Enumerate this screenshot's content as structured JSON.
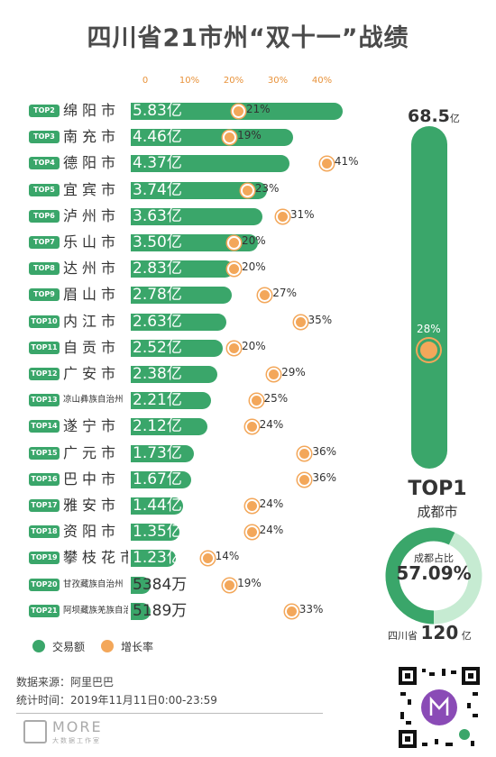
{
  "title": "四川省21市州“双十一”战绩",
  "axis": {
    "ticks": [
      "0",
      "10%",
      "20%",
      "30%",
      "40%"
    ]
  },
  "chart_data": {
    "type": "bar",
    "title": "四川省21市州“双十一”战绩",
    "series": [
      {
        "name": "交易额",
        "unit": "亿",
        "values": [
          5.83,
          4.46,
          4.37,
          3.74,
          3.63,
          3.5,
          2.83,
          2.78,
          2.63,
          2.52,
          2.38,
          2.21,
          2.12,
          1.73,
          1.67,
          1.44,
          1.35,
          1.23,
          0.5384,
          0.5189
        ]
      },
      {
        "name": "增长率",
        "unit": "%",
        "values": [
          21,
          19,
          41,
          23,
          31,
          20,
          20,
          27,
          35,
          20,
          29,
          25,
          24,
          36,
          36,
          24,
          24,
          14,
          19,
          33
        ]
      }
    ],
    "categories": [
      "绵阳市",
      "南充市",
      "德阳市",
      "宜宾市",
      "泸州市",
      "乐山市",
      "达州市",
      "眉山市",
      "内江市",
      "自贡市",
      "广安市",
      "凉山彝族自治州",
      "遂宁市",
      "广元市",
      "巴中市",
      "雅安市",
      "资阳市",
      "攀枝花市",
      "甘孜藏族自治州",
      "阿坝藏族羌族自治州"
    ],
    "rows": [
      {
        "rank": "TOP2",
        "city": "绵阳市",
        "value": 5.83,
        "label": "5.83亿",
        "growth": 21,
        "growth_label": "21%"
      },
      {
        "rank": "TOP3",
        "city": "南充市",
        "value": 4.46,
        "label": "4.46亿",
        "growth": 19,
        "growth_label": "19%"
      },
      {
        "rank": "TOP4",
        "city": "德阳市",
        "value": 4.37,
        "label": "4.37亿",
        "growth": 41,
        "growth_label": "41%"
      },
      {
        "rank": "TOP5",
        "city": "宜宾市",
        "value": 3.74,
        "label": "3.74亿",
        "growth": 23,
        "growth_label": "23%"
      },
      {
        "rank": "TOP6",
        "city": "泸州市",
        "value": 3.63,
        "label": "3.63亿",
        "growth": 31,
        "growth_label": "31%"
      },
      {
        "rank": "TOP7",
        "city": "乐山市",
        "value": 3.5,
        "label": "3.50亿",
        "growth": 20,
        "growth_label": "20%"
      },
      {
        "rank": "TOP8",
        "city": "达州市",
        "value": 2.83,
        "label": "2.83亿",
        "growth": 20,
        "growth_label": "20%"
      },
      {
        "rank": "TOP9",
        "city": "眉山市",
        "value": 2.78,
        "label": "2.78亿",
        "growth": 27,
        "growth_label": "27%"
      },
      {
        "rank": "TOP10",
        "city": "内江市",
        "value": 2.63,
        "label": "2.63亿",
        "growth": 35,
        "growth_label": "35%"
      },
      {
        "rank": "TOP11",
        "city": "自贡市",
        "value": 2.52,
        "label": "2.52亿",
        "growth": 20,
        "growth_label": "20%"
      },
      {
        "rank": "TOP12",
        "city": "广安市",
        "value": 2.38,
        "label": "2.38亿",
        "growth": 29,
        "growth_label": "29%"
      },
      {
        "rank": "TOP13",
        "city": "凉山彝族自治州",
        "value": 2.21,
        "label": "2.21亿",
        "growth": 25,
        "growth_label": "25%"
      },
      {
        "rank": "TOP14",
        "city": "遂宁市",
        "value": 2.12,
        "label": "2.12亿",
        "growth": 24,
        "growth_label": "24%"
      },
      {
        "rank": "TOP15",
        "city": "广元市",
        "value": 1.73,
        "label": "1.73亿",
        "growth": 36,
        "growth_label": "36%"
      },
      {
        "rank": "TOP16",
        "city": "巴中市",
        "value": 1.67,
        "label": "1.67亿",
        "growth": 36,
        "growth_label": "36%"
      },
      {
        "rank": "TOP17",
        "city": "雅安市",
        "value": 1.44,
        "label": "1.44亿",
        "growth": 24,
        "growth_label": "24%"
      },
      {
        "rank": "TOP18",
        "city": "资阳市",
        "value": 1.35,
        "label": "1.35亿",
        "growth": 24,
        "growth_label": "24%"
      },
      {
        "rank": "TOP19",
        "city": "攀枝花市",
        "value": 1.23,
        "label": "1.23亿",
        "growth": 14,
        "growth_label": "14%"
      },
      {
        "rank": "TOP20",
        "city": "甘孜藏族自治州",
        "value": 0.5384,
        "label": "5384万",
        "growth": 19,
        "growth_label": "19%"
      },
      {
        "rank": "TOP21",
        "city": "阿坝藏族羌族自治州",
        "value": 0.5189,
        "label": "5189万",
        "growth": 33,
        "growth_label": "33%"
      }
    ],
    "top1": {
      "rank": "TOP1",
      "city": "成都市",
      "value": 68.5,
      "value_label": "68.5",
      "unit": "亿",
      "growth": 28,
      "growth_label": "28%"
    },
    "share": {
      "label": "成都占比",
      "value": 57.09,
      "value_label": "57.09%"
    },
    "province": {
      "label": "四川省",
      "total": "120",
      "unit": "亿"
    },
    "xlim": [
      0,
      45
    ]
  },
  "legend": [
    {
      "label": "交易额",
      "color": "#3aa66a"
    },
    {
      "label": "增长率",
      "color": "#f3a75a"
    }
  ],
  "footer": {
    "source": "数据来源：阿里巴巴",
    "time": "统计时间：2019年11月11日0:00-23:59",
    "logo": "MORE",
    "logo_sub": "大数据工作室"
  },
  "colors": {
    "green": "#3aa66a",
    "orange": "#f3a75a"
  }
}
